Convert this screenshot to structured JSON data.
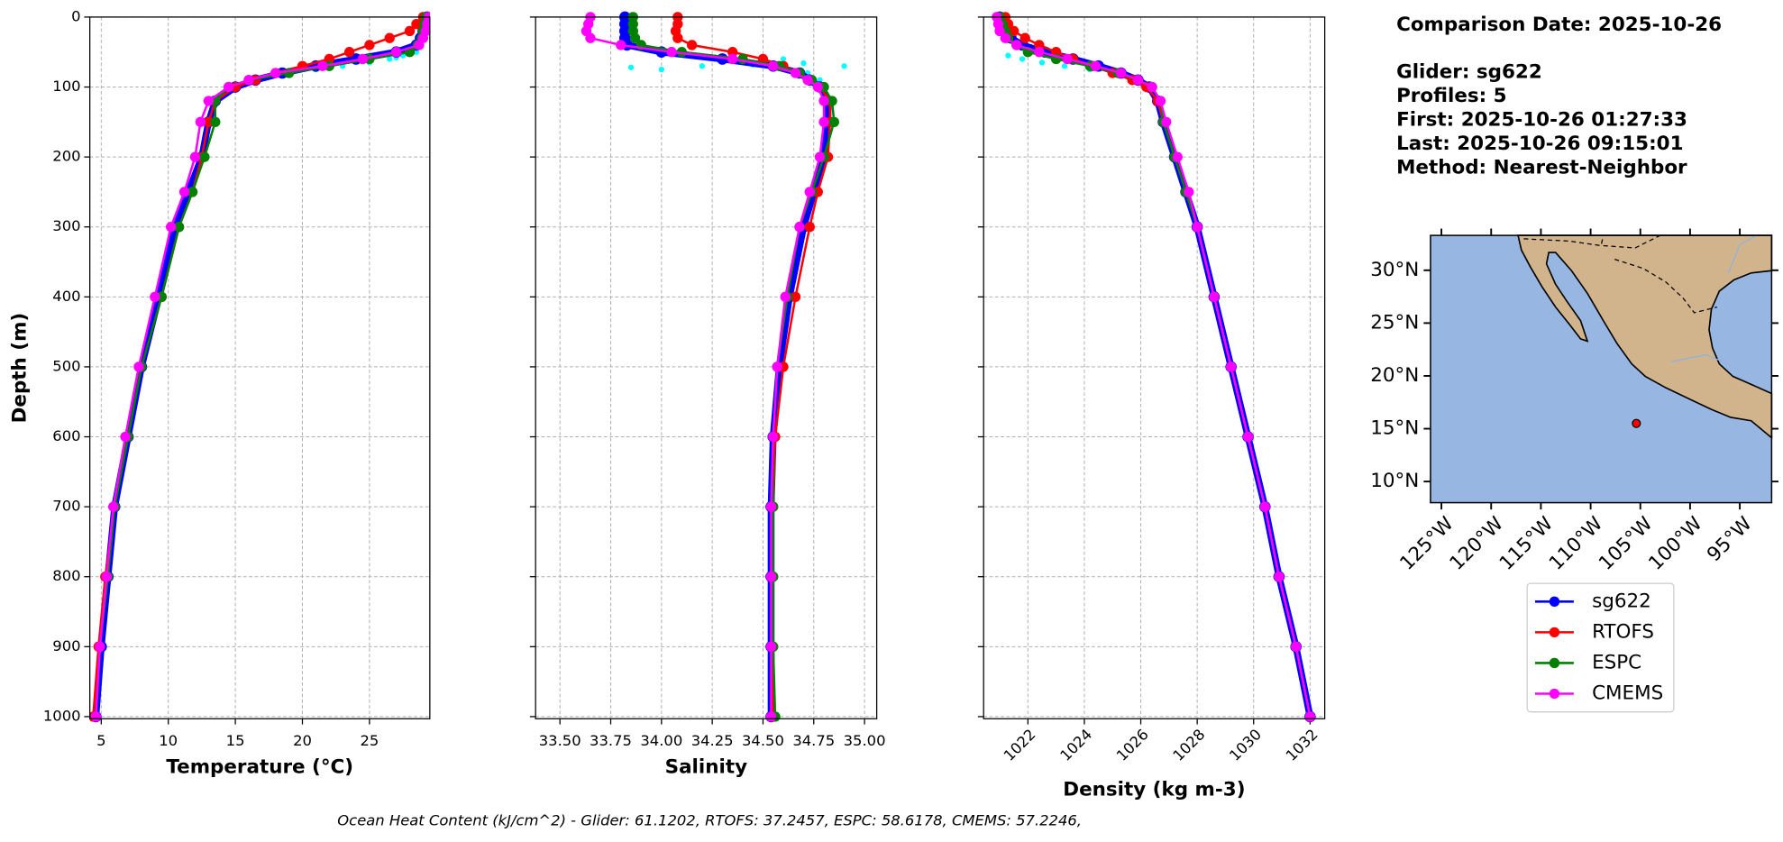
{
  "chart_data": [
    {
      "type": "line",
      "xlabel": "Temperature (°C)",
      "ylabel": "Depth (m)",
      "xlim": [
        4.15,
        29.5
      ],
      "ylim": [
        0,
        1003
      ],
      "invert_y": true,
      "grid": true,
      "show_ytick_labels": true,
      "xticks": [
        5,
        10,
        15,
        20,
        25
      ],
      "yticks": [
        0,
        100,
        200,
        300,
        400,
        500,
        600,
        700,
        800,
        900,
        1000
      ],
      "y": [
        0,
        10,
        20,
        30,
        40,
        50,
        60,
        70,
        80,
        90,
        100,
        120,
        150,
        200,
        250,
        300,
        400,
        500,
        600,
        700,
        800,
        900,
        1000
      ],
      "series": [
        {
          "name": "sg622",
          "color": "#0000ff",
          "values": [
            29.3,
            29.2,
            29.0,
            28.8,
            28.5,
            27.0,
            24.0,
            21.0,
            18.5,
            16.5,
            15.0,
            13.5,
            13.0,
            12.5,
            11.5,
            10.5,
            9.3,
            8.0,
            7.0,
            6.0,
            5.5,
            5.0,
            4.6
          ]
        },
        {
          "name": "RTOFS",
          "color": "#ff0000",
          "values": [
            29.0,
            28.5,
            28.0,
            26.5,
            25.0,
            23.5,
            22.0,
            20.0,
            18.0,
            16.5,
            15.0,
            13.5,
            13.0,
            12.5,
            11.8,
            10.8,
            9.5,
            8.0,
            7.0,
            6.0,
            5.3,
            4.8,
            4.4
          ]
        },
        {
          "name": "ESPC",
          "color": "#008000",
          "values": [
            29.2,
            29.1,
            29.0,
            28.9,
            28.6,
            28.0,
            25.0,
            22.0,
            19.0,
            16.0,
            14.5,
            13.5,
            13.5,
            12.7,
            11.8,
            10.8,
            9.5,
            8.0,
            7.0,
            6.0,
            5.5,
            4.9,
            4.6
          ]
        },
        {
          "name": "CMEMS",
          "color": "#ff00ff",
          "values": [
            29.4,
            29.3,
            29.2,
            29.0,
            28.7,
            27.0,
            24.5,
            21.5,
            18.0,
            16.0,
            14.5,
            13.0,
            12.4,
            12.0,
            11.2,
            10.2,
            9.0,
            7.8,
            6.8,
            5.9,
            5.4,
            4.9,
            4.6
          ]
        }
      ],
      "scatter": {
        "color": "#00ffff",
        "x": [
          27.5,
          26.5,
          25.0,
          23.0,
          21.0,
          19.0,
          28.5,
          27.0
        ],
        "y": [
          55,
          60,
          65,
          70,
          75,
          80,
          50,
          58
        ]
      }
    },
    {
      "type": "line",
      "xlabel": "Salinity",
      "xlim": [
        33.38,
        35.06
      ],
      "ylim": [
        0,
        1003
      ],
      "invert_y": true,
      "grid": true,
      "show_ytick_labels": false,
      "xticks": [
        {
          "value": 33.5,
          "label": "33.50"
        },
        33.75,
        {
          "value": 34.0,
          "label": "34.00"
        },
        34.25,
        {
          "value": 34.5,
          "label": "34.50"
        },
        34.75,
        {
          "value": 35.0,
          "label": "35.00"
        }
      ],
      "yticks": [
        0,
        100,
        200,
        300,
        400,
        500,
        600,
        700,
        800,
        900,
        1000
      ],
      "y": [
        0,
        10,
        20,
        30,
        40,
        50,
        60,
        70,
        80,
        90,
        100,
        120,
        150,
        200,
        250,
        300,
        400,
        500,
        600,
        700,
        800,
        900,
        1000
      ],
      "series": [
        {
          "name": "sg622",
          "color": "#0000ff",
          "values": [
            33.82,
            33.82,
            33.82,
            33.82,
            33.83,
            34.0,
            34.3,
            34.55,
            34.68,
            34.73,
            34.78,
            34.82,
            34.82,
            34.8,
            34.75,
            34.7,
            34.63,
            34.58,
            34.55,
            34.54,
            34.54,
            34.54,
            34.54
          ]
        },
        {
          "name": "RTOFS",
          "color": "#ff0000",
          "values": [
            34.08,
            34.08,
            34.07,
            34.08,
            34.15,
            34.35,
            34.5,
            34.6,
            34.68,
            34.73,
            34.78,
            34.83,
            34.83,
            34.82,
            34.77,
            34.73,
            34.66,
            34.6,
            34.56,
            34.55,
            34.55,
            34.55,
            34.55
          ]
        },
        {
          "name": "ESPC",
          "color": "#008000",
          "values": [
            33.86,
            33.86,
            33.86,
            33.87,
            33.9,
            34.1,
            34.4,
            34.58,
            34.68,
            34.74,
            34.8,
            34.84,
            34.85,
            34.8,
            34.74,
            34.68,
            34.62,
            34.57,
            34.55,
            34.55,
            34.55,
            34.55,
            34.56
          ]
        },
        {
          "name": "CMEMS",
          "color": "#ff00ff",
          "values": [
            33.65,
            33.64,
            33.63,
            33.65,
            33.8,
            34.05,
            34.35,
            34.55,
            34.66,
            34.72,
            34.77,
            34.8,
            34.8,
            34.78,
            34.73,
            34.68,
            34.61,
            34.57,
            34.55,
            34.54,
            34.54,
            34.54,
            34.54
          ]
        }
      ],
      "scatter": {
        "color": "#00ffff",
        "x": [
          33.85,
          34.0,
          34.2,
          34.45,
          34.7,
          34.9,
          34.78,
          34.8,
          34.72,
          34.6
        ],
        "y": [
          72,
          75,
          70,
          68,
          66,
          70,
          90,
          110,
          80,
          60
        ]
      }
    },
    {
      "type": "line",
      "xlabel": "Density (kg m-3)",
      "xlim": [
        1020.43,
        1032.52
      ],
      "ylim": [
        0,
        1003
      ],
      "invert_y": true,
      "grid": true,
      "show_ytick_labels": false,
      "xtick_rotation": 45,
      "xticks": [
        1022,
        1024,
        1026,
        1028,
        1030,
        1032
      ],
      "yticks": [
        0,
        100,
        200,
        300,
        400,
        500,
        600,
        700,
        800,
        900,
        1000
      ],
      "y": [
        0,
        10,
        20,
        30,
        40,
        50,
        60,
        70,
        80,
        90,
        100,
        120,
        150,
        200,
        250,
        300,
        400,
        500,
        600,
        700,
        800,
        900,
        1000
      ],
      "series": [
        {
          "name": "sg622",
          "color": "#0000ff",
          "values": [
            1021.0,
            1021.1,
            1021.2,
            1021.4,
            1021.8,
            1022.6,
            1023.6,
            1024.5,
            1025.3,
            1025.9,
            1026.3,
            1026.6,
            1026.8,
            1027.2,
            1027.6,
            1028.0,
            1028.6,
            1029.2,
            1029.8,
            1030.4,
            1030.9,
            1031.5,
            1032.0
          ]
        },
        {
          "name": "RTOFS",
          "color": "#ff0000",
          "values": [
            1021.2,
            1021.3,
            1021.5,
            1021.9,
            1022.4,
            1023.0,
            1023.6,
            1024.3,
            1025.0,
            1025.7,
            1026.2,
            1026.6,
            1026.8,
            1027.2,
            1027.6,
            1028.0,
            1028.6,
            1029.2,
            1029.8,
            1030.4,
            1030.9,
            1031.5,
            1032.0
          ]
        },
        {
          "name": "ESPC",
          "color": "#008000",
          "values": [
            1021.0,
            1021.1,
            1021.2,
            1021.3,
            1021.6,
            1022.0,
            1023.0,
            1024.2,
            1025.2,
            1025.9,
            1026.4,
            1026.7,
            1026.8,
            1027.2,
            1027.6,
            1028.0,
            1028.6,
            1029.2,
            1029.8,
            1030.4,
            1030.9,
            1031.5,
            1032.0
          ]
        },
        {
          "name": "CMEMS",
          "color": "#ff00ff",
          "values": [
            1020.9,
            1020.95,
            1021.0,
            1021.2,
            1021.6,
            1022.4,
            1023.4,
            1024.4,
            1025.3,
            1025.9,
            1026.4,
            1026.7,
            1026.9,
            1027.3,
            1027.7,
            1028.0,
            1028.6,
            1029.2,
            1029.8,
            1030.4,
            1030.9,
            1031.5,
            1032.0
          ]
        }
      ],
      "scatter": {
        "color": "#00ffff",
        "x": [
          1021.3,
          1021.8,
          1022.5,
          1023.3,
          1024.2
        ],
        "y": [
          55,
          60,
          65,
          70,
          75
        ]
      }
    },
    {
      "type": "map",
      "xlim": [
        -126.1,
        -91.8
      ],
      "ylim": [
        8.0,
        33.3
      ],
      "xtick_rotation": 45,
      "xticks": [
        {
          "value": -125,
          "label": "125°W"
        },
        {
          "value": -120,
          "label": "120°W"
        },
        {
          "value": -115,
          "label": "115°W"
        },
        {
          "value": -110,
          "label": "110°W"
        },
        {
          "value": -105,
          "label": "105°W"
        },
        {
          "value": -100,
          "label": "100°W"
        },
        {
          "value": -95,
          "label": "95°W"
        }
      ],
      "yticks": [
        {
          "value": 10,
          "label": "10°N"
        },
        {
          "value": 15,
          "label": "15°N"
        },
        {
          "value": 20,
          "label": "20°N"
        },
        {
          "value": 25,
          "label": "25°N"
        },
        {
          "value": 30,
          "label": "30°N"
        }
      ],
      "points": {
        "color": "#ff0000",
        "lon": [
          -105.4
        ],
        "lat": [
          15.5
        ]
      }
    }
  ],
  "info": [
    "Comparison Date: 2025-10-26",
    "Glider: sg622",
    "Profiles: 5",
    "First: 2025-10-26 01:27:33",
    "Last: 2025-10-26 09:15:01",
    "Method: Nearest-Neighbor"
  ],
  "footnote": "Ocean Heat Content (kJ/cm^2) - Glider: 61.1202,  RTOFS: 37.2457,  ESPC: 58.6178,  CMEMS: 57.2246,"
}
